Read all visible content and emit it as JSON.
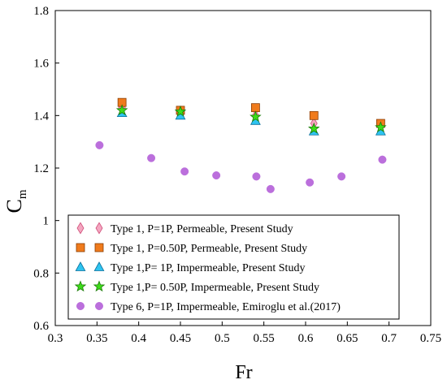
{
  "chart_data": {
    "type": "scatter",
    "xlabel": "Fr",
    "ylabel_main": "C",
    "ylabel_sub": "m",
    "xlim": [
      0.3,
      0.75
    ],
    "ylim": [
      0.6,
      1.8
    ],
    "xticks": [
      0.3,
      0.35,
      0.4,
      0.45,
      0.5,
      0.55,
      0.6,
      0.65,
      0.7,
      0.75
    ],
    "xtick_labels": [
      "0.3",
      "0.35",
      "0.4",
      "0.45",
      "0.5",
      "0.55",
      "0.6",
      "0.65",
      "0.7",
      "0.75"
    ],
    "yticks": [
      0.6,
      0.8,
      1.0,
      1.2,
      1.4,
      1.6,
      1.8
    ],
    "ytick_labels": [
      "0.6",
      "0.8",
      "1",
      "1.2",
      "1.4",
      "1.6",
      "1.8"
    ],
    "grid": false,
    "legend_position": "bottom",
    "series": [
      {
        "name": "Type 1, P=1P, Permeable, Present Study",
        "marker": "diamond",
        "color": "#f4a6c0",
        "stroke": "#d0507a",
        "points": [
          [
            0.38,
            1.43
          ],
          [
            0.45,
            1.41
          ],
          [
            0.54,
            1.4
          ],
          [
            0.61,
            1.37
          ],
          [
            0.69,
            1.36
          ]
        ]
      },
      {
        "name": "Type 1, P=0.50P, Permeable, Present Study",
        "marker": "square",
        "color": "#f07b1c",
        "stroke": "#8a3e06",
        "points": [
          [
            0.38,
            1.45
          ],
          [
            0.45,
            1.42
          ],
          [
            0.54,
            1.43
          ],
          [
            0.61,
            1.4
          ],
          [
            0.69,
            1.37
          ]
        ]
      },
      {
        "name": "Type 1,P= 1P, Impermeable, Present Study",
        "marker": "triangle",
        "color": "#2ec4f0",
        "stroke": "#0a6f9a",
        "points": [
          [
            0.38,
            1.41
          ],
          [
            0.45,
            1.4
          ],
          [
            0.54,
            1.38
          ],
          [
            0.61,
            1.34
          ],
          [
            0.69,
            1.34
          ]
        ]
      },
      {
        "name": "Type 1,P= 0.50P, Impermeable, Present Study",
        "marker": "star",
        "color": "#3ddc1a",
        "stroke": "#1a7a06",
        "points": [
          [
            0.38,
            1.42
          ],
          [
            0.45,
            1.415
          ],
          [
            0.54,
            1.395
          ],
          [
            0.61,
            1.35
          ],
          [
            0.69,
            1.355
          ]
        ]
      },
      {
        "name": "Type 6, P=1P, Impermeable, Emiroglu et al.(2017)",
        "marker": "circle",
        "color": "#bb6fdc",
        "stroke": "#bb6fdc",
        "points": [
          [
            0.353,
            1.287
          ],
          [
            0.415,
            1.238
          ],
          [
            0.455,
            1.187
          ],
          [
            0.493,
            1.172
          ],
          [
            0.541,
            1.168
          ],
          [
            0.558,
            1.12
          ],
          [
            0.605,
            1.145
          ],
          [
            0.643,
            1.168
          ],
          [
            0.692,
            1.232
          ]
        ]
      }
    ]
  }
}
